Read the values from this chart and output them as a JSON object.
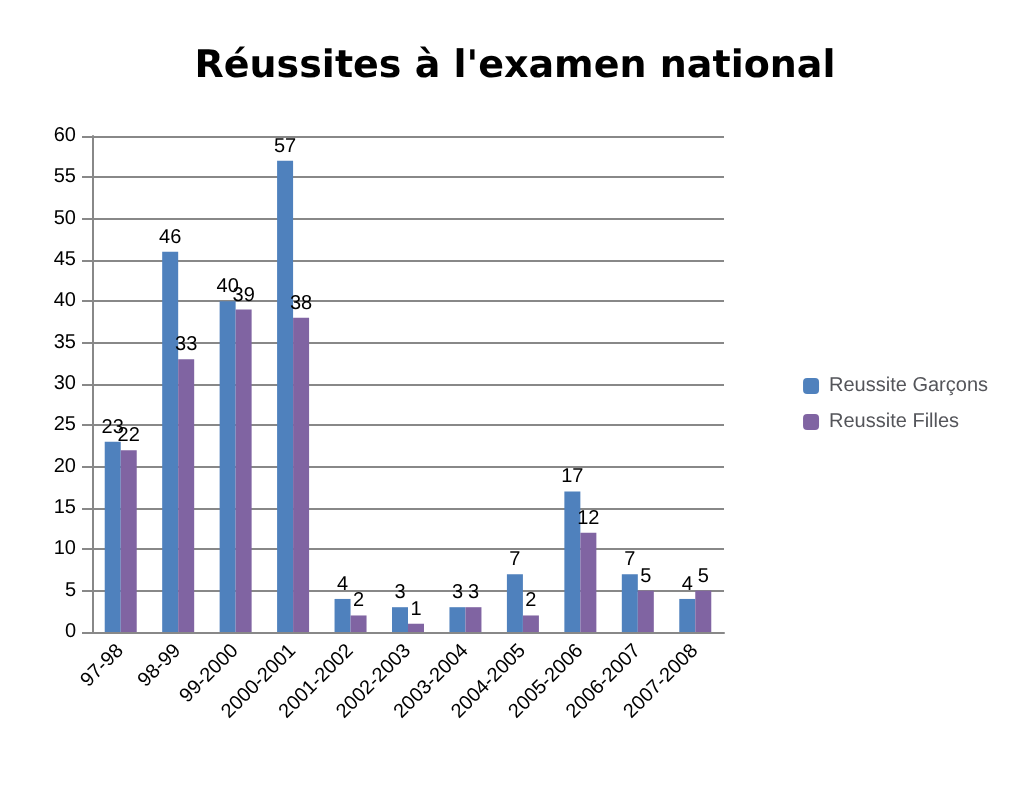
{
  "chart_data": {
    "type": "bar",
    "title": "Réussites à l'examen national",
    "categories": [
      "97-98",
      "98-99",
      "99-2000",
      "2000-2001",
      "2001-2002",
      "2002-2003",
      "2003-2004",
      "2004-2005",
      "2005-2006",
      "2006-2007",
      "2007-2008"
    ],
    "series": [
      {
        "name": "Reussite Garçons",
        "color": "#4f81bd",
        "values": [
          23,
          46,
          40,
          57,
          4,
          3,
          3,
          7,
          17,
          7,
          4
        ]
      },
      {
        "name": "Reussite Filles",
        "color": "#8064a2",
        "values": [
          22,
          33,
          39,
          38,
          2,
          1,
          3,
          2,
          12,
          5,
          5
        ]
      }
    ],
    "ylim": [
      0,
      60
    ],
    "yticks": [
      0,
      5,
      10,
      15,
      20,
      25,
      30,
      35,
      40,
      45,
      50,
      55,
      60
    ],
    "grid": "y",
    "legend": "right",
    "data_labels": true
  }
}
